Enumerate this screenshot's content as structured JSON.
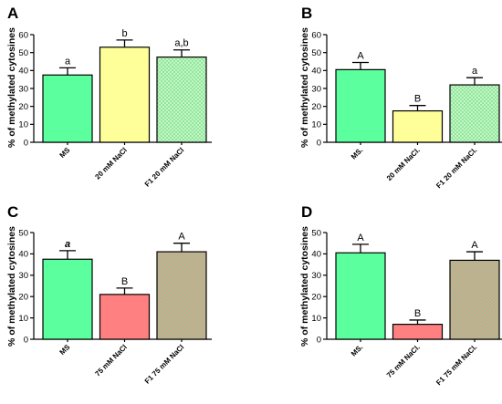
{
  "colors": {
    "ms": "#5cff9d",
    "salt20": "#ffff99",
    "salt75": "#ff8080",
    "f1_20_base": "#c6f4c6",
    "f1_20_check": "#8fe89c",
    "f1_75_base": "#a8b98c",
    "f1_75_dot": "#ff9a9a"
  },
  "chart_data": [
    {
      "panel": "A",
      "type": "bar",
      "ylabel": "% of methylated cytosines",
      "ylim": [
        0,
        60
      ],
      "yticks": [
        0,
        10,
        20,
        30,
        40,
        50,
        60
      ],
      "categories": [
        "MS",
        "20 mM NaCl",
        "F1 20 mM NaCl"
      ],
      "values": [
        37.5,
        53,
        47.5
      ],
      "errors": [
        4,
        4,
        4
      ],
      "labels": [
        "a",
        "b",
        "a,b"
      ],
      "fills": [
        "ms",
        "salt20",
        "f1_20"
      ]
    },
    {
      "panel": "B",
      "type": "bar",
      "ylabel": "% of methylated cytosines",
      "ylim": [
        0,
        60
      ],
      "yticks": [
        0,
        10,
        20,
        30,
        40,
        50,
        60
      ],
      "categories": [
        "MS.",
        "20 mM NaCl.",
        "F1 20 mM NaCl."
      ],
      "values": [
        40.5,
        17.5,
        32
      ],
      "errors": [
        4,
        3,
        4
      ],
      "labels": [
        "A",
        "B",
        "a"
      ],
      "fills": [
        "ms",
        "salt20",
        "f1_20"
      ]
    },
    {
      "panel": "C",
      "type": "bar",
      "ylabel": "% of methylated cytosines",
      "ylim": [
        0,
        50
      ],
      "yticks": [
        0,
        10,
        20,
        30,
        40,
        50
      ],
      "categories": [
        "MS",
        "75 mM NaCl",
        "F1 75 mM NaCl"
      ],
      "values": [
        37.5,
        21,
        41
      ],
      "errors": [
        4,
        3,
        4
      ],
      "labels": [
        "a",
        "B",
        "A"
      ],
      "fills": [
        "ms",
        "salt75",
        "f1_75"
      ]
    },
    {
      "panel": "D",
      "type": "bar",
      "ylabel": "% of methylated cytosines",
      "ylim": [
        0,
        50
      ],
      "yticks": [
        0,
        10,
        20,
        30,
        40,
        50
      ],
      "categories": [
        "MS.",
        "75 mM NaCl.",
        "F1 75 mM NaCl."
      ],
      "values": [
        40.5,
        7,
        37
      ],
      "errors": [
        4,
        2,
        4
      ],
      "labels": [
        "A",
        "B",
        "A"
      ],
      "fills": [
        "ms",
        "salt75",
        "f1_75"
      ]
    }
  ]
}
